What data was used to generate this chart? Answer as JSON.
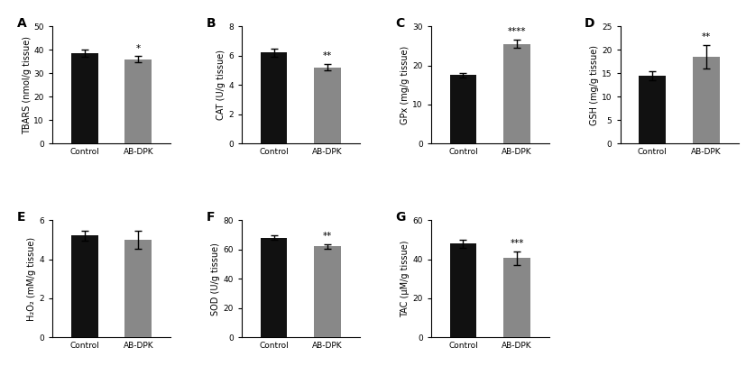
{
  "panels": [
    {
      "label": "A",
      "ylabel": "TBARS (nmol/g tissue)",
      "ylim": [
        0,
        50
      ],
      "yticks": [
        0,
        10,
        20,
        30,
        40,
        50
      ],
      "categories": [
        "Control",
        "AB-DPK"
      ],
      "values": [
        38.5,
        36.0
      ],
      "errors": [
        1.5,
        1.2
      ],
      "colors": [
        "#111111",
        "#888888"
      ],
      "sig": "*",
      "sig_on": 1
    },
    {
      "label": "B",
      "ylabel": "CAT (U/g tissue)",
      "ylim": [
        0,
        8
      ],
      "yticks": [
        0,
        2,
        4,
        6,
        8
      ],
      "categories": [
        "Control",
        "AB-DPK"
      ],
      "values": [
        6.2,
        5.2
      ],
      "errors": [
        0.28,
        0.22
      ],
      "colors": [
        "#111111",
        "#888888"
      ],
      "sig": "**",
      "sig_on": 1
    },
    {
      "label": "C",
      "ylabel": "GPx (mg/g tissue)",
      "ylim": [
        0,
        30
      ],
      "yticks": [
        0,
        10,
        20,
        30
      ],
      "categories": [
        "Control",
        "AB-DPK"
      ],
      "values": [
        17.5,
        25.5
      ],
      "errors": [
        0.5,
        1.0
      ],
      "colors": [
        "#111111",
        "#888888"
      ],
      "sig": "****",
      "sig_on": 1
    },
    {
      "label": "D",
      "ylabel": "GSH (mg/g tissue)",
      "ylim": [
        0,
        25
      ],
      "yticks": [
        0,
        5,
        10,
        15,
        20,
        25
      ],
      "categories": [
        "Control",
        "AB-DPK"
      ],
      "values": [
        14.5,
        18.5
      ],
      "errors": [
        1.0,
        2.5
      ],
      "colors": [
        "#111111",
        "#888888"
      ],
      "sig": "**",
      "sig_on": 1
    },
    {
      "label": "E",
      "ylabel": "H₂O₂ (mM/g tissue)",
      "ylim": [
        0,
        6
      ],
      "yticks": [
        0,
        2,
        4,
        6
      ],
      "categories": [
        "Control",
        "AB-DPK"
      ],
      "values": [
        5.2,
        5.0
      ],
      "errors": [
        0.25,
        0.45
      ],
      "colors": [
        "#111111",
        "#888888"
      ],
      "sig": "",
      "sig_on": -1
    },
    {
      "label": "F",
      "ylabel": "SOD (U/g tissue)",
      "ylim": [
        0,
        80
      ],
      "yticks": [
        0,
        20,
        40,
        60,
        80
      ],
      "categories": [
        "Control",
        "AB-DPK"
      ],
      "values": [
        68.0,
        62.0
      ],
      "errors": [
        1.5,
        1.5
      ],
      "colors": [
        "#111111",
        "#888888"
      ],
      "sig": "**",
      "sig_on": 1
    },
    {
      "label": "G",
      "ylabel": "TAC (μM/g tissue)",
      "ylim": [
        0,
        60
      ],
      "yticks": [
        0,
        20,
        40,
        60
      ],
      "categories": [
        "Control",
        "AB-DPK"
      ],
      "values": [
        48.0,
        40.5
      ],
      "errors": [
        2.0,
        3.5
      ],
      "colors": [
        "#111111",
        "#888888"
      ],
      "sig": "***",
      "sig_on": 1
    }
  ],
  "bar_width": 0.5,
  "tick_fontsize": 6.5,
  "label_fontsize": 7.0,
  "panel_label_fontsize": 10,
  "sig_fontsize": 7.5,
  "figsize": [
    8.27,
    4.16
  ],
  "dpi": 100
}
